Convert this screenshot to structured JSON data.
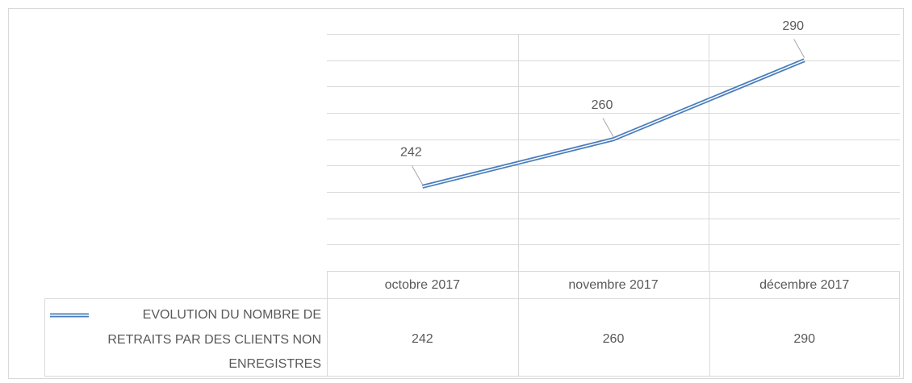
{
  "chart_data": {
    "type": "line",
    "categories": [
      "octobre 2017",
      "novembre 2017",
      "décembre 2017"
    ],
    "series": [
      {
        "name": "EVOLUTION DU NOMBRE DE RETRAITS PAR DES CLIENTS NON ENREGISTRES",
        "color": "#4a7ebb",
        "values": [
          242,
          260,
          290
        ]
      }
    ],
    "ylim": [
      210,
      300
    ],
    "yticks": [
      210,
      220,
      230,
      240,
      250,
      260,
      270,
      280,
      290,
      300
    ],
    "grid": true
  }
}
